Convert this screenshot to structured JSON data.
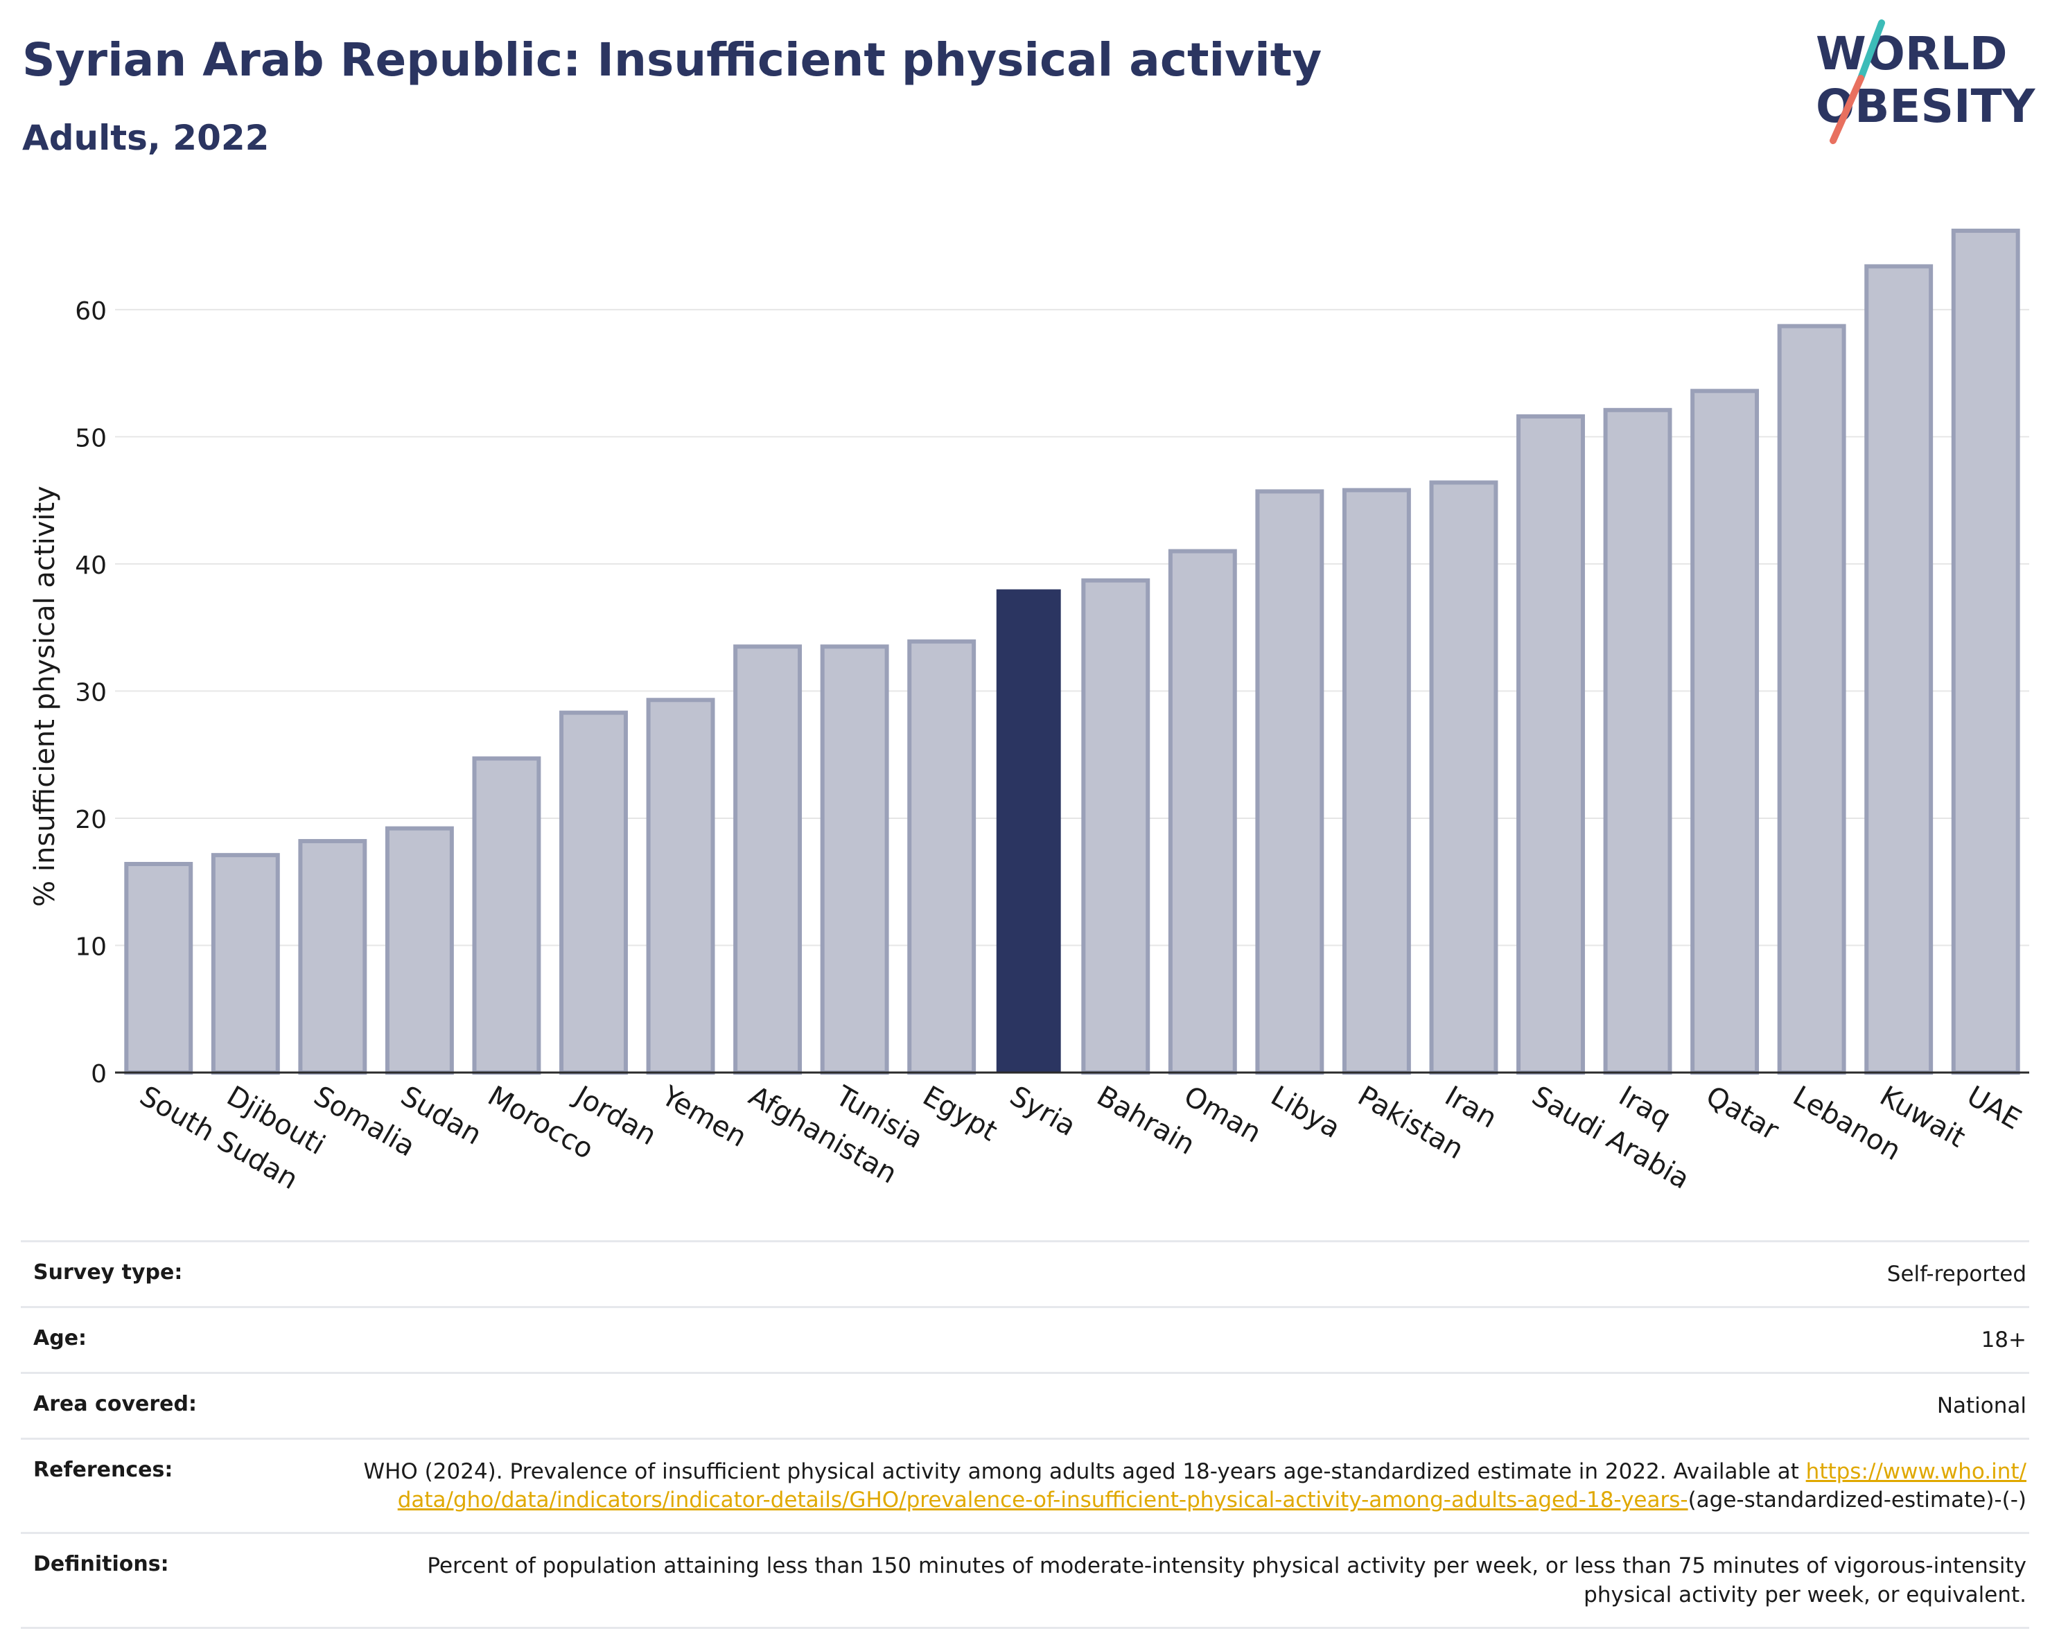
{
  "header": {
    "title": "Syrian Arab Republic: Insufficient physical activity",
    "subtitle": "Adults, 2022"
  },
  "logo": {
    "line1": "WORLD",
    "line2": "OBESITY",
    "colors": {
      "text": "#2b3561",
      "slash_top": "#3cbcb8",
      "slash_bottom": "#e8705f"
    }
  },
  "colors": {
    "bar": "#bfc2d0",
    "bar_stroke": "#9aa0b8",
    "highlight": "#2b3561",
    "grid": "#e6e6e6",
    "link": "#e0a800"
  },
  "chart_data": {
    "type": "bar",
    "title": "Syrian Arab Republic: Insufficient physical activity",
    "subtitle": "Adults, 2022",
    "xlabel": "",
    "ylabel": "% insufficient physical activity",
    "ylim": [
      0,
      68
    ],
    "yticks": [
      0,
      10,
      20,
      30,
      40,
      50,
      60
    ],
    "grid": true,
    "highlight": "Syria",
    "categories": [
      "South Sudan",
      "Djibouti",
      "Somalia",
      "Sudan",
      "Morocco",
      "Jordan",
      "Yemen",
      "Afghanistan",
      "Tunisia",
      "Egypt",
      "Syria",
      "Bahrain",
      "Oman",
      "Libya",
      "Pakistan",
      "Iran",
      "Saudi Arabia",
      "Iraq",
      "Qatar",
      "Lebanon",
      "Kuwait",
      "UAE"
    ],
    "values": [
      16.4,
      17.1,
      18.2,
      19.2,
      24.7,
      28.3,
      29.3,
      33.5,
      33.5,
      33.9,
      38.0,
      38.7,
      41.0,
      45.7,
      45.8,
      46.4,
      51.6,
      52.1,
      53.6,
      58.7,
      63.4,
      66.2
    ]
  },
  "meta": {
    "rows": [
      {
        "label": "Survey type:",
        "value": "Self-reported"
      },
      {
        "label": "Age:",
        "value": "18+"
      },
      {
        "label": "Area covered:",
        "value": "National"
      },
      {
        "label": "References:",
        "value": "WHO (2024). Prevalence of insufficient physical activity among adults aged 18-years age-standardized estimate in 2022. Available at ",
        "link": "https://www.who.int/data/gho/data/indicators/indicator-details/GHO/prevalence-of-insufficient-physical-activity-among-adults-aged-18-years-",
        "suffix": "(age-standardized-estimate)-(-)"
      },
      {
        "label": "Definitions:",
        "value": "Percent of population attaining less than 150 minutes of moderate-intensity physical activity per week, or less than 75 minutes of vigorous-intensity physical activity per week, or equivalent."
      }
    ]
  }
}
